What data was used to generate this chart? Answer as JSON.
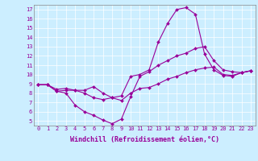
{
  "xlabel": "Windchill (Refroidissement éolien,°C)",
  "bg_color": "#cceeff",
  "line_color": "#990099",
  "grid_color": "#ffffff",
  "xlim": [
    -0.5,
    23.5
  ],
  "ylim": [
    4.5,
    17.5
  ],
  "yticks": [
    5,
    6,
    7,
    8,
    9,
    10,
    11,
    12,
    13,
    14,
    15,
    16,
    17
  ],
  "xticks": [
    0,
    1,
    2,
    3,
    4,
    5,
    6,
    7,
    8,
    9,
    10,
    11,
    12,
    13,
    14,
    15,
    16,
    17,
    18,
    19,
    20,
    21,
    22,
    23
  ],
  "series": [
    [
      8.9,
      8.9,
      8.2,
      8.3,
      8.3,
      8.3,
      8.7,
      8.0,
      7.5,
      7.7,
      9.8,
      10.0,
      10.5,
      13.5,
      15.5,
      17.0,
      17.2,
      16.5,
      12.2,
      10.5,
      9.9,
      9.8,
      10.2,
      10.4
    ],
    [
      8.9,
      8.9,
      8.4,
      8.5,
      8.3,
      8.0,
      7.5,
      7.3,
      7.5,
      7.2,
      8.0,
      8.5,
      8.6,
      9.0,
      9.5,
      9.8,
      10.2,
      10.5,
      10.7,
      10.8,
      10.0,
      9.9,
      10.2,
      10.4
    ],
    [
      8.9,
      8.9,
      8.2,
      8.0,
      6.7,
      6.0,
      5.6,
      5.1,
      4.7,
      5.2,
      7.6,
      9.8,
      10.3,
      11.0,
      11.5,
      12.0,
      12.3,
      12.8,
      13.0,
      11.5,
      10.5,
      10.3,
      10.2,
      10.4
    ]
  ],
  "figsize": [
    3.2,
    2.0
  ],
  "dpi": 100,
  "xlabel_fontsize": 6.0,
  "tick_fontsize": 5.0
}
